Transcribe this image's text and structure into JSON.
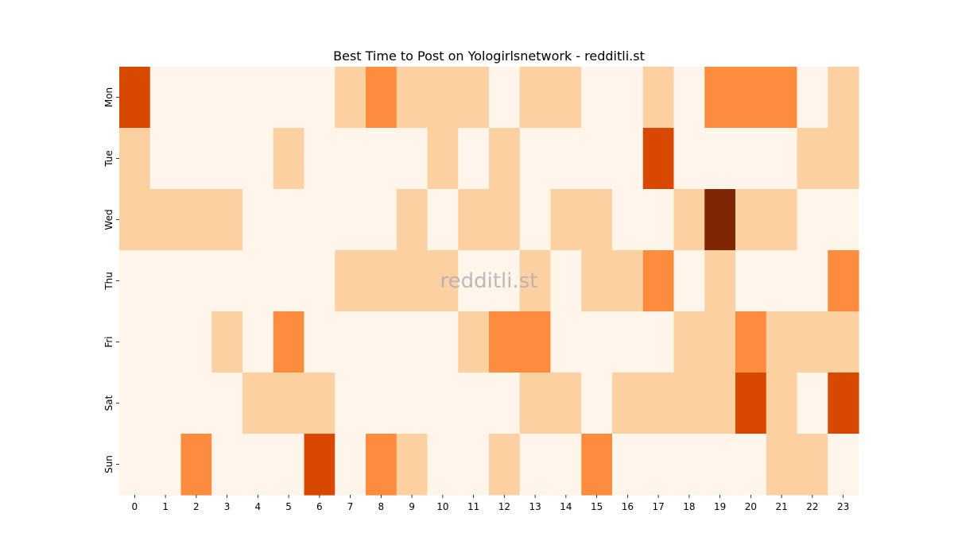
{
  "chart_data": {
    "type": "heatmap",
    "title": "Best Time to Post on Yologirlsnetwork - redditli.st",
    "watermark": "redditli.st",
    "xlabel": "",
    "ylabel": "",
    "x_categories": [
      "0",
      "1",
      "2",
      "3",
      "4",
      "5",
      "6",
      "7",
      "8",
      "9",
      "10",
      "11",
      "12",
      "13",
      "14",
      "15",
      "16",
      "17",
      "18",
      "19",
      "20",
      "21",
      "22",
      "23"
    ],
    "y_categories": [
      "Mon",
      "Tue",
      "Wed",
      "Thu",
      "Fri",
      "Sat",
      "Sun"
    ],
    "values": [
      [
        3,
        0,
        0,
        0,
        0,
        0,
        0,
        1,
        2,
        1,
        1,
        1,
        0,
        1,
        1,
        0,
        0,
        1,
        0,
        2,
        2,
        2,
        0,
        1
      ],
      [
        1,
        0,
        0,
        0,
        0,
        1,
        0,
        0,
        0,
        0,
        1,
        0,
        1,
        0,
        0,
        0,
        0,
        3,
        0,
        0,
        0,
        0,
        1,
        1
      ],
      [
        1,
        1,
        1,
        1,
        0,
        0,
        0,
        0,
        0,
        1,
        0,
        1,
        1,
        0,
        1,
        1,
        0,
        0,
        1,
        4,
        1,
        1,
        0,
        0
      ],
      [
        0,
        0,
        0,
        0,
        0,
        0,
        0,
        1,
        1,
        1,
        1,
        0,
        0,
        1,
        0,
        1,
        1,
        2,
        0,
        1,
        0,
        0,
        0,
        2
      ],
      [
        0,
        0,
        0,
        1,
        0,
        2,
        0,
        0,
        0,
        0,
        0,
        1,
        2,
        2,
        0,
        0,
        0,
        0,
        1,
        1,
        2,
        1,
        1,
        1
      ],
      [
        0,
        0,
        0,
        0,
        1,
        1,
        1,
        0,
        0,
        0,
        0,
        0,
        0,
        1,
        1,
        0,
        1,
        1,
        1,
        1,
        3,
        1,
        0,
        3
      ],
      [
        0,
        0,
        2,
        0,
        0,
        0,
        3,
        0,
        2,
        1,
        0,
        0,
        1,
        0,
        0,
        2,
        0,
        0,
        0,
        0,
        0,
        1,
        1,
        0
      ]
    ],
    "colormap": [
      "#fff5eb",
      "#fdd0a2",
      "#fd8d3c",
      "#d94801",
      "#7f2704"
    ]
  }
}
